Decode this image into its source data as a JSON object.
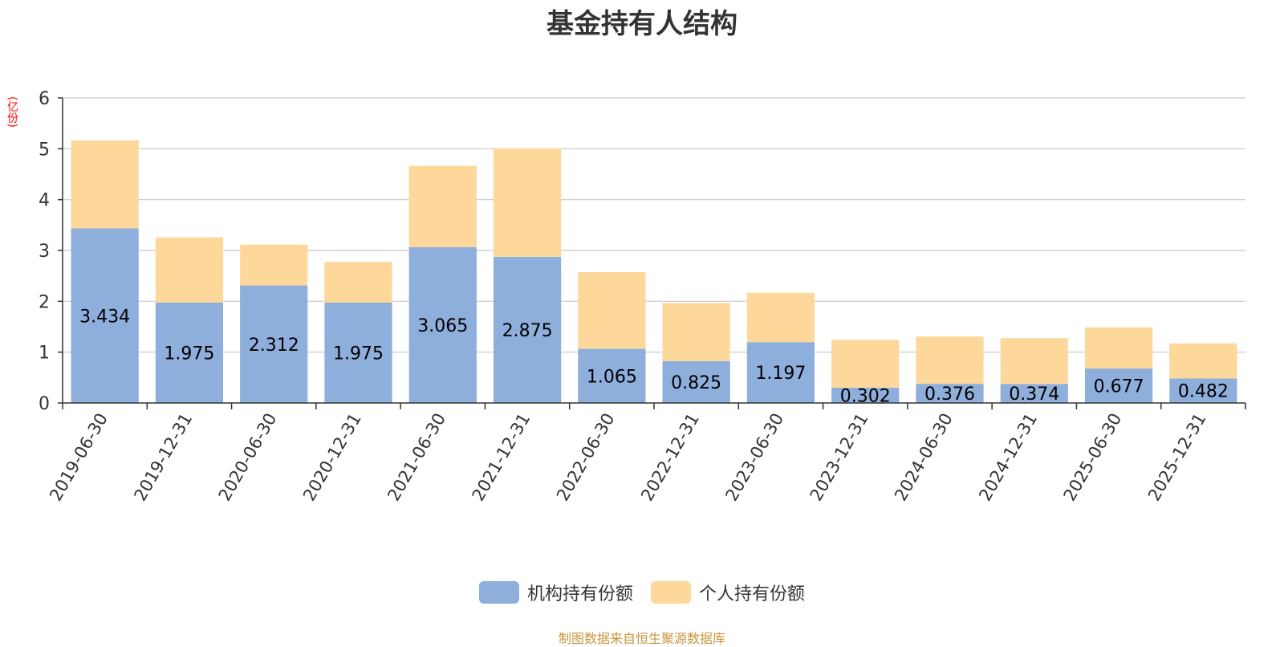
{
  "title": "基金持有人结构",
  "unit": "(亿份)",
  "source": "制图数据来自恒生聚源数据库",
  "colors": {
    "institutional": "#8eaedb",
    "individual": "#fdd89a",
    "axis": "#333333",
    "grid": "#c8c8c8",
    "label": "#000000"
  },
  "chart_data": {
    "type": "bar",
    "stacked": true,
    "categories": [
      "2019-06-30",
      "2019-12-31",
      "2020-06-30",
      "2020-12-31",
      "2021-06-30",
      "2021-12-31",
      "2022-06-30",
      "2022-12-31",
      "2023-06-30",
      "2023-12-31",
      "2024-06-30",
      "2024-12-31",
      "2025-06-30",
      "2025-12-31"
    ],
    "series": [
      {
        "name": "机构持有份额",
        "values": [
          3.434,
          1.975,
          2.312,
          1.975,
          3.065,
          2.875,
          1.065,
          0.825,
          1.197,
          0.302,
          0.376,
          0.374,
          0.677,
          0.482
        ]
      },
      {
        "name": "个人持有份额",
        "values": [
          1.73,
          1.28,
          0.8,
          0.8,
          1.6,
          2.13,
          1.51,
          1.14,
          0.97,
          0.94,
          0.93,
          0.9,
          0.81,
          0.69
        ]
      }
    ],
    "data_labels_series": "机构持有份额",
    "yticks": [
      0,
      1,
      2,
      3,
      4,
      5,
      6
    ],
    "ylim": [
      0,
      6
    ],
    "grid": true,
    "legend_position": "bottom-center"
  }
}
